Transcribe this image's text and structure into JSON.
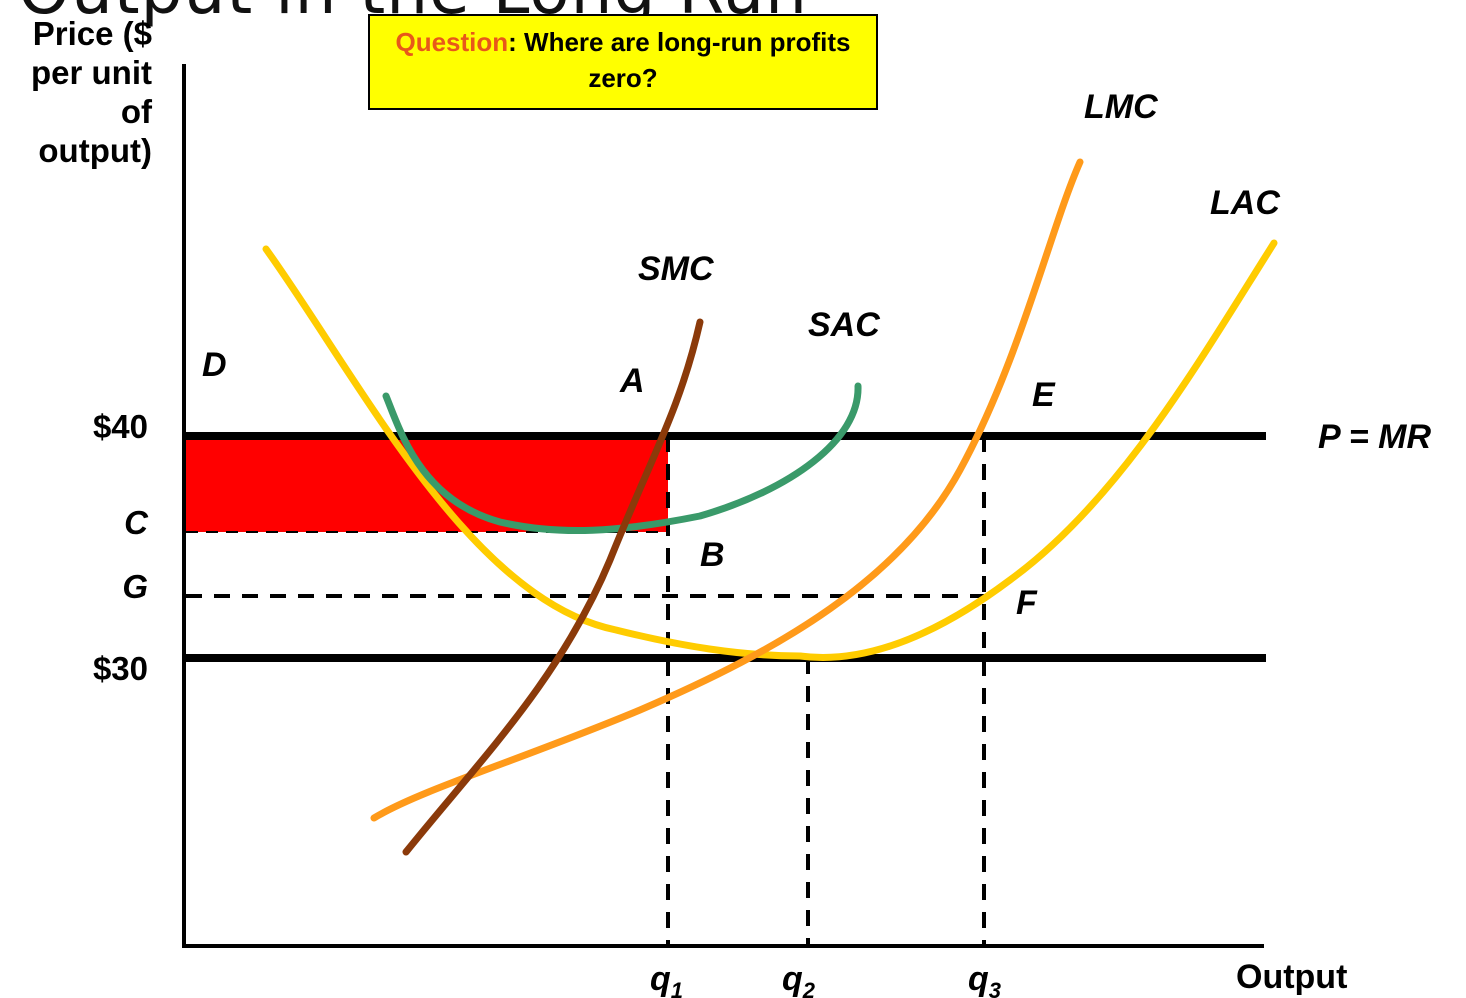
{
  "title": "Output in the Long Run",
  "question": {
    "prefix": "Question",
    "text": ": Where are long-run profits zero?"
  },
  "colors": {
    "profit_area": "#ff0000",
    "question_bg": "#ffff00",
    "question_prefix": "#e8581a",
    "SMC": "#8b3a0a",
    "SAC": "#3a9a6a",
    "LMC": "#ff9a1a",
    "LAC": "#ffcc00",
    "price_lines": "#000000"
  },
  "chart_data": {
    "type": "line",
    "ylabel": "Price ($ per unit of output)",
    "xlabel": "Output",
    "y_ticks": [
      "$40",
      "C",
      "G",
      "$30"
    ],
    "x_ticks": [
      {
        "base": "q",
        "sub": "1"
      },
      {
        "base": "q",
        "sub": "2"
      },
      {
        "base": "q",
        "sub": "3"
      }
    ],
    "horizontal_lines": [
      {
        "name": "P = MR",
        "price": "$40",
        "style": "solid"
      },
      {
        "name": "$30",
        "price": "$30",
        "style": "solid"
      }
    ],
    "curves": [
      "D",
      "SMC",
      "SAC",
      "LMC",
      "LAC"
    ],
    "points": [
      "A",
      "B",
      "E",
      "F"
    ],
    "shaded_region": {
      "from_price": "C",
      "to_price": "$40",
      "to_output": "q1"
    }
  }
}
